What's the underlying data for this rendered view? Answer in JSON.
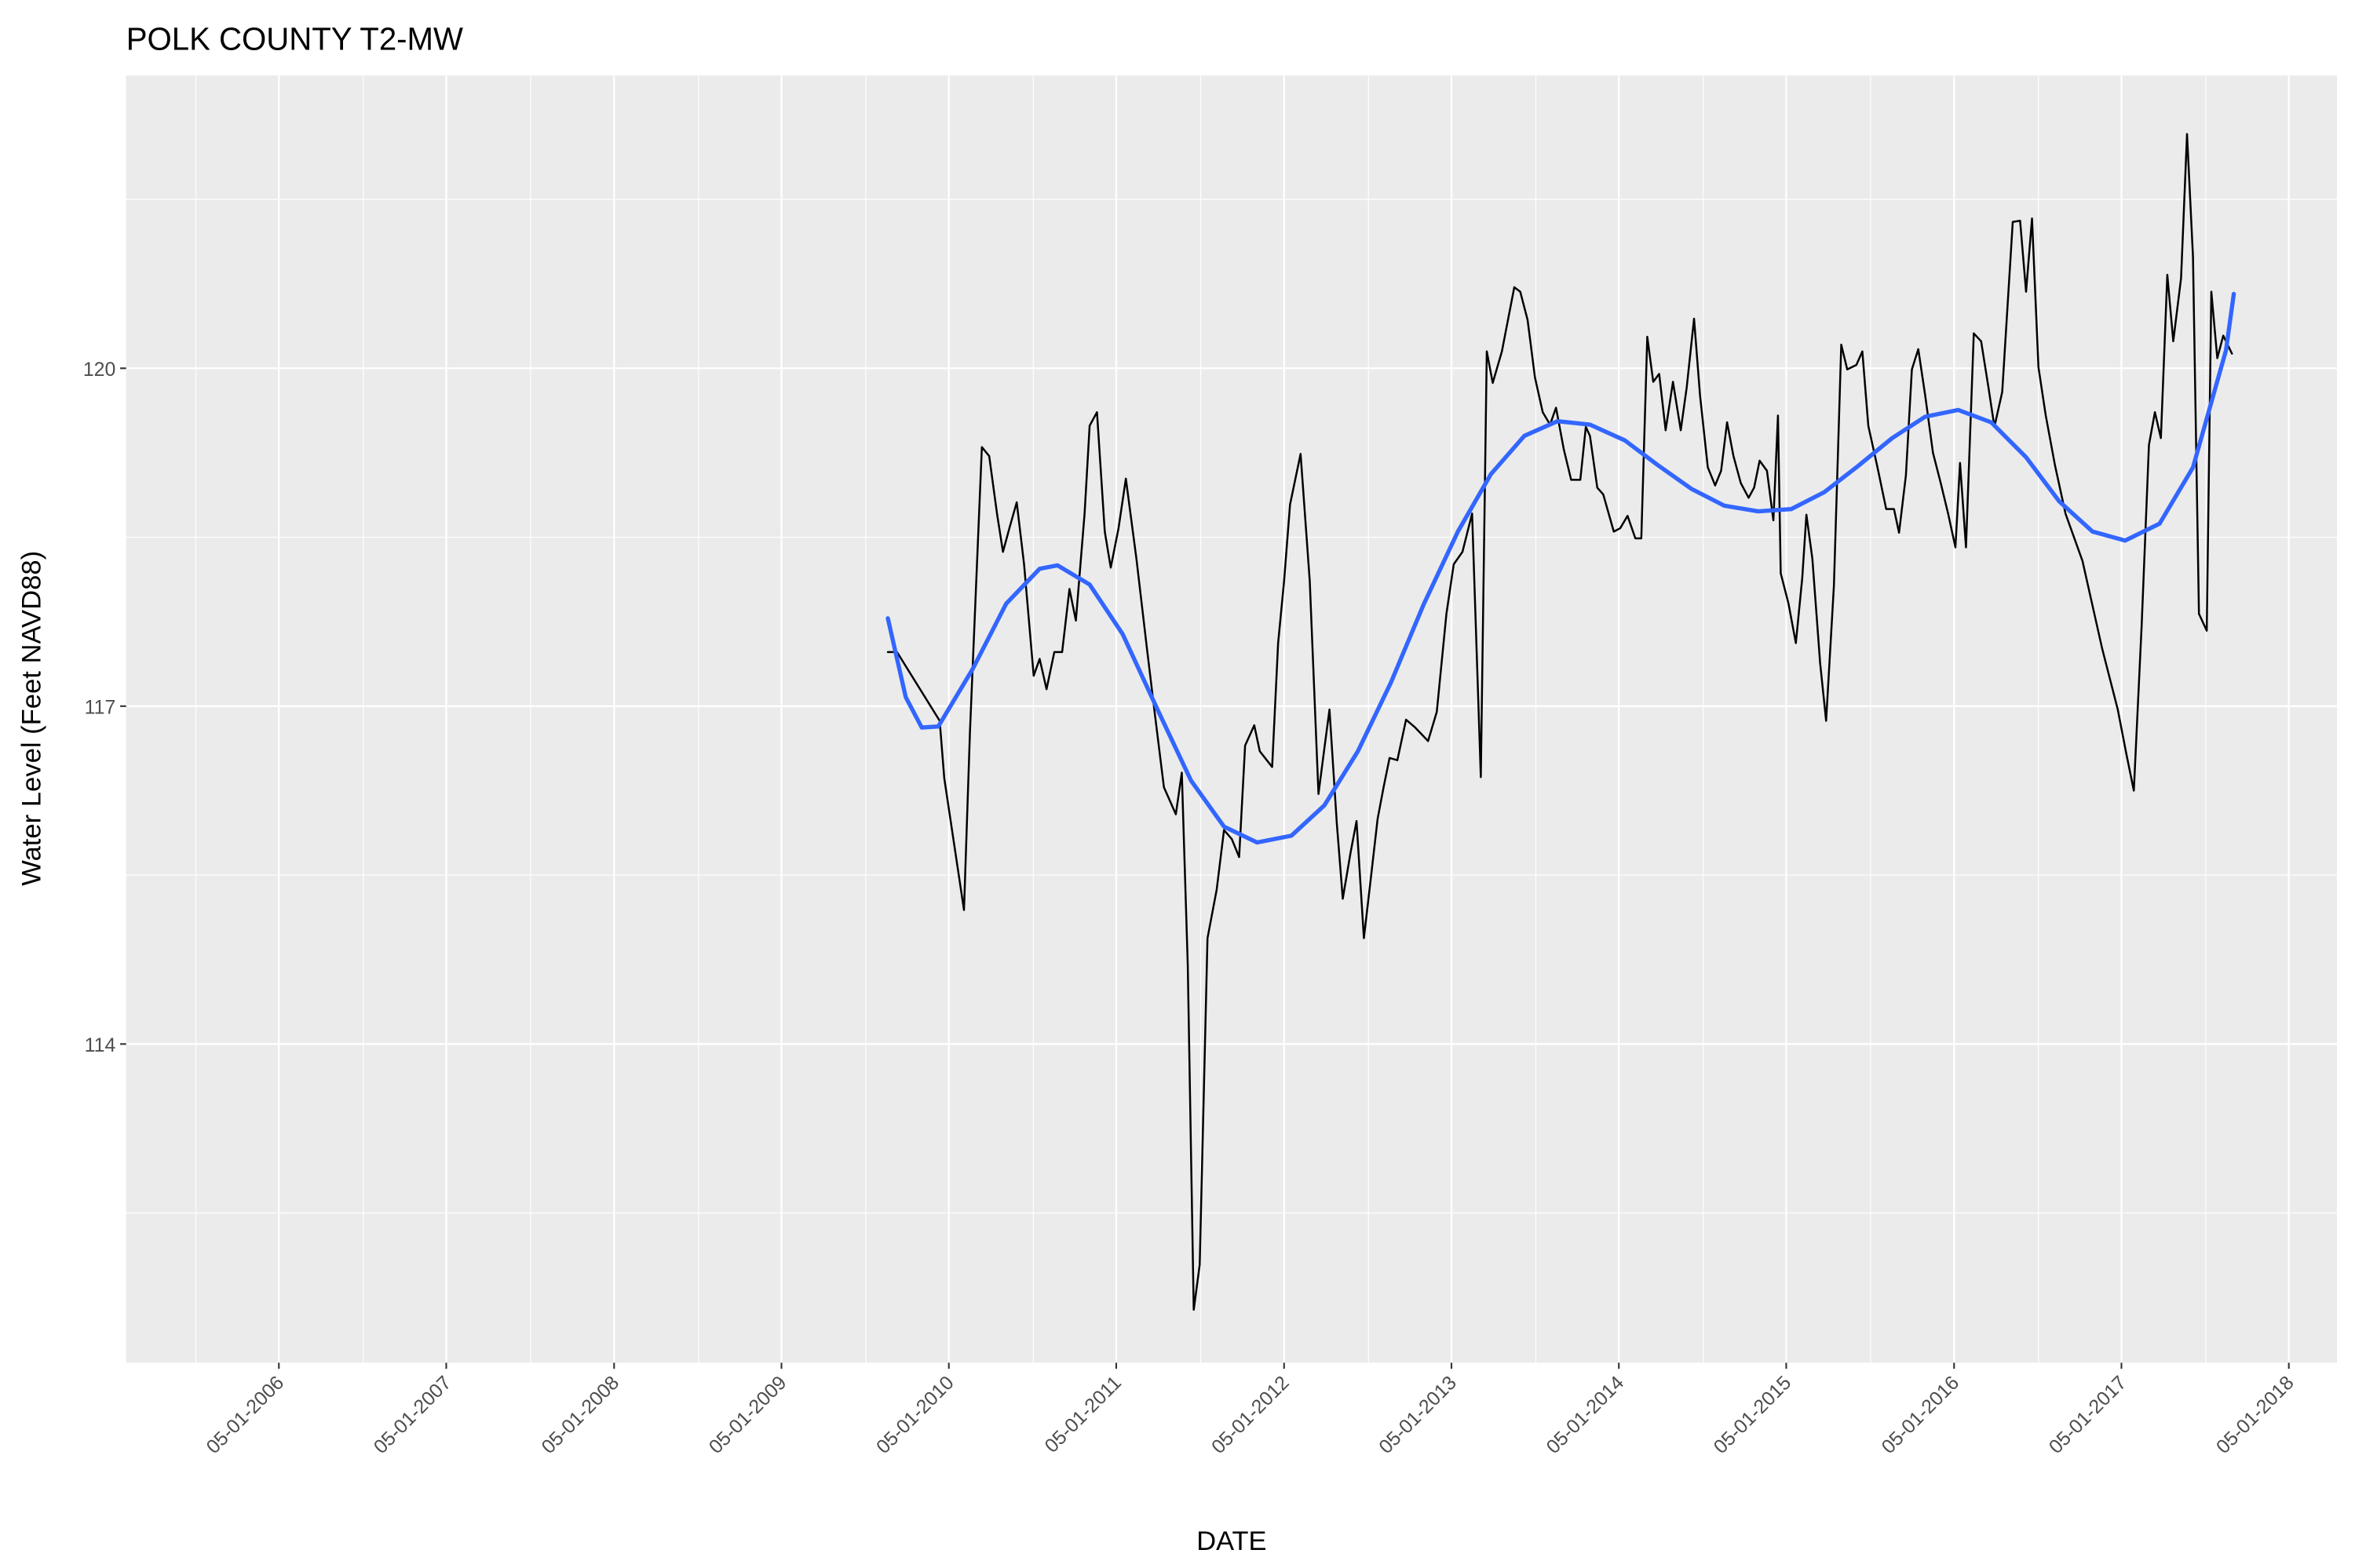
{
  "chart_data": {
    "type": "line",
    "title": "POLK COUNTY T2-MW",
    "x_label": "DATE",
    "y_label": "Water Level (Feet NAVD88)",
    "xlim": [
      "2005-06-02",
      "2018-08-14"
    ],
    "ylim": [
      111.17,
      122.6
    ],
    "xticks": [
      {
        "value": "2006-05-01",
        "label": "05-01-2006"
      },
      {
        "value": "2007-05-01",
        "label": "05-01-2007"
      },
      {
        "value": "2008-05-01",
        "label": "05-01-2008"
      },
      {
        "value": "2009-05-01",
        "label": "05-01-2009"
      },
      {
        "value": "2010-05-01",
        "label": "05-01-2010"
      },
      {
        "value": "2011-05-01",
        "label": "05-01-2011"
      },
      {
        "value": "2012-05-01",
        "label": "05-01-2012"
      },
      {
        "value": "2013-05-01",
        "label": "05-01-2013"
      },
      {
        "value": "2014-05-01",
        "label": "05-01-2014"
      },
      {
        "value": "2015-05-01",
        "label": "05-01-2015"
      },
      {
        "value": "2016-05-01",
        "label": "05-01-2016"
      },
      {
        "value": "2017-05-01",
        "label": "05-01-2017"
      },
      {
        "value": "2018-05-01",
        "label": "05-01-2018"
      }
    ],
    "xminorticks": [
      "2005-11-01",
      "2006-11-01",
      "2007-11-01",
      "2008-11-01",
      "2009-11-01",
      "2010-11-01",
      "2011-11-01",
      "2012-11-01",
      "2013-11-01",
      "2014-11-01",
      "2015-11-01",
      "2016-11-01",
      "2017-11-01"
    ],
    "yticks": [
      114,
      117,
      120
    ],
    "yminorticks": [
      112.5,
      115.5,
      118.5,
      121.5
    ],
    "grid": true,
    "series": [
      {
        "color": "#000000",
        "x": [
          "2009-12-19",
          "2010-01-08",
          "2010-04-11",
          "2010-04-21",
          "2010-06-03",
          "2010-06-16",
          "2010-07-12",
          "2010-07-28",
          "2010-08-14",
          "2010-08-27",
          "2010-09-10",
          "2010-09-26",
          "2010-10-12",
          "2010-11-02",
          "2010-11-15",
          "2010-11-30",
          "2010-12-17",
          "2011-01-03",
          "2011-01-19",
          "2011-02-02",
          "2011-02-21",
          "2011-03-04",
          "2011-03-20",
          "2011-04-06",
          "2011-04-19",
          "2011-05-06",
          "2011-05-22",
          "2011-06-14",
          "2011-07-07",
          "2011-07-23",
          "2011-08-13",
          "2011-09-08",
          "2011-09-21",
          "2011-10-04",
          "2011-10-17",
          "2011-10-30",
          "2011-11-16",
          "2011-12-06",
          "2011-12-22",
          "2012-01-08",
          "2012-01-24",
          "2012-02-06",
          "2012-02-26",
          "2012-03-09",
          "2012-04-05",
          "2012-04-18",
          "2012-05-01",
          "2012-05-14",
          "2012-06-06",
          "2012-06-26",
          "2012-07-15",
          "2012-07-28",
          "2012-08-08",
          "2012-08-24",
          "2012-09-06",
          "2012-09-23",
          "2012-10-06",
          "2012-10-22",
          "2012-11-05",
          "2012-11-21",
          "2012-12-04",
          "2012-12-17",
          "2013-01-03",
          "2013-01-22",
          "2013-02-11",
          "2013-03-11",
          "2013-03-30",
          "2013-04-20",
          "2013-05-06",
          "2013-05-25",
          "2013-06-15",
          "2013-07-04",
          "2013-07-17",
          "2013-07-30",
          "2013-08-19",
          "2013-09-15",
          "2013-09-28",
          "2013-10-14",
          "2013-10-30",
          "2013-11-16",
          "2013-12-02",
          "2013-12-15",
          "2014-01-01",
          "2014-01-17",
          "2014-02-06",
          "2014-02-18",
          "2014-02-27",
          "2014-03-15",
          "2014-03-28",
          "2014-04-20",
          "2014-05-04",
          "2014-05-20",
          "2014-06-06",
          "2014-06-19",
          "2014-07-02",
          "2014-07-15",
          "2014-07-28",
          "2014-08-11",
          "2014-08-27",
          "2014-09-13",
          "2014-09-26",
          "2014-10-12",
          "2014-10-25",
          "2014-11-11",
          "2014-11-27",
          "2014-12-10",
          "2014-12-23",
          "2015-01-06",
          "2015-01-22",
          "2015-02-08",
          "2015-02-20",
          "2015-03-04",
          "2015-03-20",
          "2015-04-03",
          "2015-04-13",
          "2015-04-19",
          "2015-05-06",
          "2015-05-22",
          "2015-06-05",
          "2015-06-14",
          "2015-06-27",
          "2015-07-14",
          "2015-07-27",
          "2015-08-13",
          "2015-08-29",
          "2015-09-11",
          "2015-10-01",
          "2015-10-14",
          "2015-10-27",
          "2015-11-16",
          "2015-12-05",
          "2015-12-22",
          "2016-01-02",
          "2016-01-17",
          "2016-01-30",
          "2016-02-13",
          "2016-02-28",
          "2016-03-16",
          "2016-04-02",
          "2016-04-18",
          "2016-05-04",
          "2016-05-14",
          "2016-05-27",
          "2016-06-13",
          "2016-06-29",
          "2016-07-15",
          "2016-07-28",
          "2016-08-14",
          "2016-09-06",
          "2016-09-22",
          "2016-10-05",
          "2016-10-18",
          "2016-11-01",
          "2016-11-17",
          "2016-12-07",
          "2016-12-30",
          "2017-02-05",
          "2017-03-20",
          "2017-04-23",
          "2017-05-12",
          "2017-05-28",
          "2017-06-14",
          "2017-06-30",
          "2017-07-13",
          "2017-07-26",
          "2017-08-09",
          "2017-08-22",
          "2017-09-08",
          "2017-09-21",
          "2017-10-04",
          "2017-10-17",
          "2017-11-03",
          "2017-11-13",
          "2017-11-26",
          "2017-12-09",
          "2017-12-28"
        ],
        "values": [
          117.48,
          117.48,
          116.87,
          116.36,
          115.19,
          116.77,
          119.3,
          119.22,
          118.71,
          118.37,
          118.58,
          118.81,
          118.26,
          117.27,
          117.42,
          117.15,
          117.48,
          117.48,
          118.04,
          117.76,
          118.71,
          119.49,
          119.61,
          118.55,
          118.23,
          118.58,
          119.02,
          118.31,
          117.51,
          116.97,
          116.28,
          116.04,
          116.41,
          114.7,
          111.64,
          112.04,
          114.94,
          115.37,
          115.9,
          115.82,
          115.66,
          116.65,
          116.83,
          116.6,
          116.46,
          117.56,
          118.11,
          118.79,
          119.24,
          118.11,
          116.22,
          116.63,
          116.97,
          115.96,
          115.29,
          115.7,
          115.98,
          114.94,
          115.43,
          116.0,
          116.28,
          116.54,
          116.52,
          116.88,
          116.81,
          116.69,
          116.95,
          117.82,
          118.26,
          118.37,
          118.71,
          116.37,
          120.15,
          119.87,
          120.15,
          120.72,
          120.68,
          120.43,
          119.92,
          119.61,
          119.5,
          119.65,
          119.28,
          119.01,
          119.01,
          119.48,
          119.4,
          118.94,
          118.88,
          118.55,
          118.58,
          118.69,
          118.49,
          118.49,
          120.28,
          119.88,
          119.95,
          119.45,
          119.88,
          119.45,
          119.83,
          120.44,
          119.76,
          119.12,
          118.96,
          119.09,
          119.52,
          119.22,
          118.98,
          118.85,
          118.94,
          119.18,
          119.09,
          118.65,
          119.58,
          118.18,
          117.91,
          117.56,
          118.14,
          118.7,
          118.31,
          117.38,
          116.87,
          118.07,
          120.21,
          119.99,
          120.03,
          120.15,
          119.49,
          119.12,
          118.75,
          118.75,
          118.54,
          119.05,
          119.99,
          120.17,
          119.76,
          119.25,
          118.98,
          118.71,
          118.41,
          119.16,
          118.41,
          120.31,
          120.24,
          119.83,
          119.48,
          119.79,
          121.3,
          121.31,
          120.68,
          121.33,
          120.01,
          119.58,
          119.14,
          118.71,
          118.29,
          117.51,
          116.97,
          116.57,
          116.25,
          117.71,
          119.32,
          119.61,
          119.38,
          120.83,
          120.24,
          120.8,
          122.08,
          120.99,
          117.82,
          117.67,
          120.68,
          120.09,
          120.29,
          120.13
        ]
      },
      {
        "color": "#3366FF",
        "x": [
          "2009-12-19",
          "2010-01-27",
          "2010-03-03",
          "2010-04-08",
          "2010-06-22",
          "2010-09-03",
          "2010-11-15",
          "2010-12-24",
          "2011-03-04",
          "2011-05-15",
          "2011-07-30",
          "2011-10-11",
          "2011-12-22",
          "2012-03-03",
          "2012-05-17",
          "2012-07-28",
          "2012-10-09",
          "2012-12-20",
          "2013-03-01",
          "2013-05-15",
          "2013-07-26",
          "2013-10-07",
          "2013-12-18",
          "2014-02-27",
          "2014-05-14",
          "2014-07-25",
          "2014-10-06",
          "2014-12-17",
          "2015-03-01",
          "2015-05-12",
          "2015-07-23",
          "2015-10-04",
          "2015-12-18",
          "2016-02-28",
          "2016-05-10",
          "2016-07-21",
          "2016-10-05",
          "2016-12-16",
          "2017-02-27",
          "2017-05-09",
          "2017-07-23",
          "2017-10-04",
          "2017-12-15",
          "2018-01-01"
        ],
        "values": [
          117.78,
          117.08,
          116.81,
          116.82,
          117.33,
          117.91,
          118.22,
          118.25,
          118.08,
          117.64,
          116.97,
          116.34,
          115.93,
          115.79,
          115.85,
          116.12,
          116.6,
          117.21,
          117.9,
          118.55,
          119.06,
          119.4,
          119.53,
          119.5,
          119.36,
          119.14,
          118.93,
          118.78,
          118.73,
          118.75,
          118.9,
          119.13,
          119.38,
          119.57,
          119.63,
          119.52,
          119.21,
          118.82,
          118.55,
          118.47,
          118.62,
          119.12,
          120.16,
          120.66
        ]
      }
    ]
  }
}
